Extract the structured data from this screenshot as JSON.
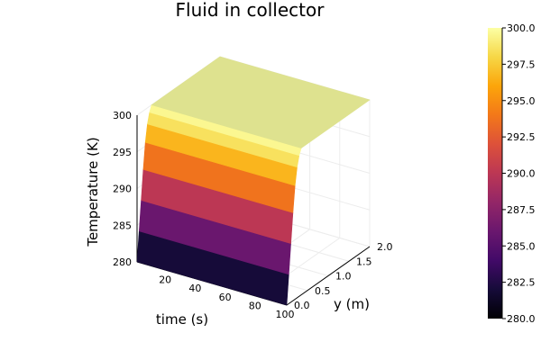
{
  "chart_data": {
    "type": "surface",
    "title": "Fluid in collector",
    "xlabel": "time (s)",
    "ylabel": "y (m)",
    "zlabel": "Temperature (K)",
    "xlim": [
      0,
      100
    ],
    "ylim": [
      0,
      2
    ],
    "zlim": [
      280,
      300
    ],
    "x_ticks": [
      "20",
      "40",
      "60",
      "80",
      "100"
    ],
    "y_ticks": [
      "0.0",
      "0.5",
      "1.0",
      "1.5",
      "2.0"
    ],
    "z_ticks": [
      "280",
      "285",
      "290",
      "295",
      "300"
    ],
    "colorbar": {
      "colormap": "inferno",
      "clim": [
        280,
        300
      ],
      "ticks": [
        "280.0",
        "282.5",
        "285.0",
        "287.5",
        "290.0",
        "292.5",
        "295.0",
        "297.5",
        "300.0"
      ]
    },
    "surface": {
      "description_of_profile": "temperature vs y at start: rises from 280 K at y=0 to ~300 K by y~0.35 m, constant 300 K beyond; same profile for all times",
      "profile_y": [
        0,
        0.05,
        0.1,
        0.15,
        0.2,
        0.25,
        0.3,
        0.35,
        0.4,
        2.0
      ],
      "profile_T": [
        280,
        284,
        288,
        292,
        295.5,
        297.8,
        299.2,
        300,
        300,
        300
      ]
    }
  }
}
